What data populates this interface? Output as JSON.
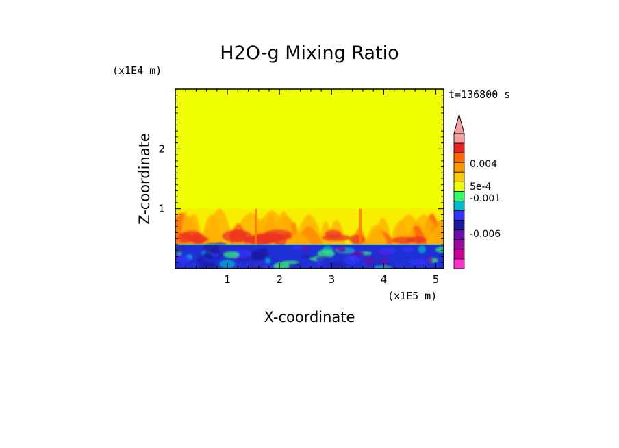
{
  "chart_data": {
    "type": "heatmap",
    "title": "H2O-g Mixing Ratio",
    "xlabel": "X-coordinate",
    "ylabel": "Z-coordinate",
    "x_unit": "(x1E5 m)",
    "y_unit": "(x1E4 m)",
    "time_label": "t=136800 s",
    "xlim": [
      0,
      5.15
    ],
    "ylim": [
      0,
      3.0
    ],
    "x_ticks": [
      "1",
      "2",
      "3",
      "4",
      "5"
    ],
    "x_tick_values": [
      1,
      2,
      3,
      4,
      5
    ],
    "y_ticks": [
      "1",
      "2"
    ],
    "y_tick_values": [
      1,
      2
    ],
    "field_regions": [
      {
        "name": "upper-uniform",
        "z_range": [
          1.0,
          3.0
        ],
        "color": "#eeff00"
      },
      {
        "name": "turbulent-plumes",
        "z_range": [
          0.4,
          1.0
        ],
        "color": "#ffcc00"
      },
      {
        "name": "boundary-layer",
        "z_range": [
          0.0,
          0.4
        ],
        "color": "#1f2fd6"
      }
    ],
    "colorbar": {
      "labels": [
        "0.004",
        "5e-4",
        "-0.001",
        "-0.006"
      ],
      "colors": [
        "#f4a0a0",
        "#ee2222",
        "#ff6600",
        "#ff9900",
        "#ffcc00",
        "#eeff00",
        "#33ff66",
        "#00bbcc",
        "#3333ff",
        "#1a1aa0",
        "#6a0daa",
        "#9a0aa0",
        "#cc0099",
        "#ff33cc"
      ]
    }
  }
}
